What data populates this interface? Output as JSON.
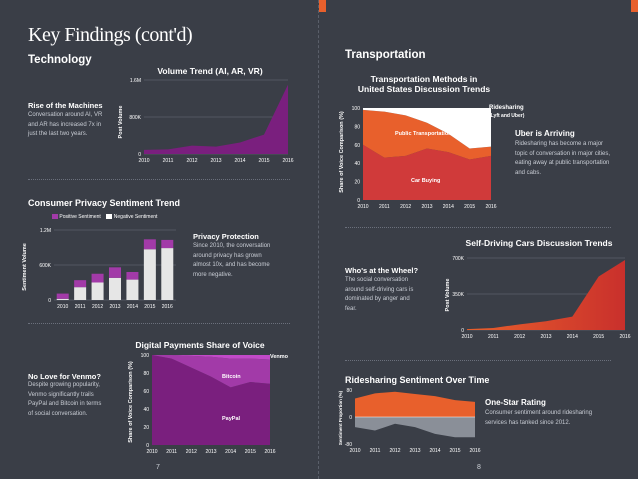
{
  "left_page": {
    "title": "Key Findings (cont'd)",
    "section": "Technology",
    "page_number": "7",
    "volume_trend": {
      "title": "Volume Trend (AI, AR, VR)",
      "heading": "Rise of the Machines",
      "text": [
        "Conversation around AI, VR",
        "and AR has increased 7x in",
        "just the last two years."
      ],
      "ylabel": "Post Volume",
      "yticks": [
        "1.6M",
        "800K",
        "0"
      ],
      "xticks": [
        "2010",
        "2011",
        "2012",
        "2013",
        "2014",
        "2015",
        "2016"
      ]
    },
    "privacy": {
      "title": "Consumer Privacy Sentiment Trend",
      "legend_positive": "Positive Sentiment",
      "legend_negative": "Negative Sentiment",
      "ylabel": "Sentiment Volume",
      "yticks": [
        "1.2M",
        "600K",
        "0"
      ],
      "heading": "Privacy Protection",
      "text": [
        "Since 2010, the conversation",
        "around privacy has grown",
        "almost 10x, and has become",
        "more negative."
      ]
    },
    "payments": {
      "title": "Digital Payments Share of Voice",
      "heading": "No Love for Venmo?",
      "text": [
        "Despite growing popularity,",
        "Venmo significantly trails",
        "PayPal and Bitcoin in terms",
        "of social conversation."
      ],
      "ylabel": "Share of Voice Comparison (%)",
      "yticks": [
        "100",
        "80",
        "60",
        "40",
        "20",
        "0"
      ],
      "label_venmo": "Venmo",
      "label_bitcoin": "Bitcoin",
      "label_paypal": "PayPal"
    }
  },
  "right_page": {
    "section": "Transportation",
    "page_number": "8",
    "methods": {
      "title_line1": "Transportation Methods in",
      "title_line2": "United States Discussion Trends",
      "ylabel": "Share of Voice Comparison (%)",
      "yticks": [
        "100",
        "80",
        "60",
        "40",
        "20",
        "0"
      ],
      "label_ridesharing": "Ridesharing",
      "label_ridesharing_sub": "(Lyft and Uber)",
      "label_public": "Public Transportation",
      "label_car": "Car Buying",
      "heading": "Uber is Arriving",
      "text": [
        "Ridesharing has become a major",
        "topic of conversation in major cities,",
        "eating away at public transportation",
        "and cabs."
      ]
    },
    "selfdriving": {
      "title": "Self-Driving Cars Discussion Trends",
      "heading": "Who's at the Wheel?",
      "text": [
        "The social conversation",
        "around self-driving cars is",
        "dominated by anger and",
        "fear."
      ],
      "ylabel": "Post Volume",
      "yticks": [
        "700K",
        "350K",
        "0"
      ]
    },
    "ridesharing_sentiment": {
      "title": "Ridesharing Sentiment Over Time",
      "ylabel": "Sentiment Proportion (%)",
      "yticks": [
        "80",
        "0",
        "-80"
      ],
      "heading": "One-Star Rating",
      "text": [
        "Consumer sentiment around ridesharing",
        "services has tanked since 2012."
      ]
    }
  },
  "xticks": [
    "2010",
    "2011",
    "2012",
    "2013",
    "2014",
    "2015",
    "2016"
  ],
  "colors": {
    "background": "#3a3e47",
    "orange": "#e8602c",
    "red": "#d03a3a",
    "purple_dark": "#7a1f7e",
    "purple_light": "#a23aa8",
    "gray_area": "#8a8f98"
  },
  "chart_data": [
    {
      "type": "area",
      "title": "Volume Trend (AI, AR, VR)",
      "x": [
        2010,
        2011,
        2012,
        2013,
        2014,
        2015,
        2016
      ],
      "series": [
        {
          "name": "Post Volume",
          "values": [
            90000,
            100000,
            180000,
            160000,
            250000,
            420000,
            1500000
          ]
        }
      ],
      "ylim": [
        0,
        1600000
      ],
      "ylabel": "Post Volume"
    },
    {
      "type": "bar",
      "title": "Consumer Privacy Sentiment Trend",
      "categories": [
        "2010",
        "2011",
        "2012",
        "2013",
        "2014",
        "2015",
        "2016"
      ],
      "series": [
        {
          "name": "Positive Sentiment",
          "values": [
            90000,
            120000,
            150000,
            180000,
            130000,
            170000,
            140000
          ]
        },
        {
          "name": "Negative Sentiment",
          "values": [
            20000,
            220000,
            300000,
            380000,
            350000,
            870000,
            890000
          ]
        }
      ],
      "ylim": [
        0,
        1200000
      ],
      "ylabel": "Sentiment Volume"
    },
    {
      "type": "area",
      "title": "Digital Payments Share of Voice",
      "x": [
        2010,
        2011,
        2012,
        2013,
        2014,
        2015,
        2016
      ],
      "series": [
        {
          "name": "PayPal",
          "values": [
            100,
            96,
            86,
            76,
            64,
            70,
            68
          ]
        },
        {
          "name": "Bitcoin",
          "values": [
            0,
            4,
            13,
            22,
            32,
            26,
            27
          ]
        },
        {
          "name": "Venmo",
          "values": [
            0,
            0,
            1,
            2,
            4,
            4,
            5
          ]
        }
      ],
      "ylim": [
        0,
        100
      ],
      "ylabel": "Share of Voice Comparison (%)"
    },
    {
      "type": "area",
      "title": "Transportation Methods in United States Discussion Trends",
      "x": [
        2010,
        2011,
        2012,
        2013,
        2014,
        2015,
        2016
      ],
      "series": [
        {
          "name": "Car Buying",
          "values": [
            60,
            46,
            48,
            56,
            52,
            44,
            48
          ]
        },
        {
          "name": "Public Transportation",
          "values": [
            38,
            50,
            44,
            28,
            20,
            12,
            10
          ]
        },
        {
          "name": "Ridesharing (Lyft and Uber)",
          "values": [
            2,
            4,
            8,
            16,
            28,
            44,
            42
          ]
        }
      ],
      "ylim": [
        0,
        100
      ],
      "ylabel": "Share of Voice Comparison (%)"
    },
    {
      "type": "area",
      "title": "Self-Driving Cars Discussion Trends",
      "x": [
        2010,
        2011,
        2012,
        2013,
        2014,
        2015,
        2016
      ],
      "series": [
        {
          "name": "Post Volume",
          "values": [
            8000,
            20000,
            55000,
            85000,
            130000,
            520000,
            680000
          ]
        }
      ],
      "ylim": [
        0,
        700000
      ],
      "ylabel": "Post Volume"
    },
    {
      "type": "area",
      "title": "Ridesharing Sentiment Over Time",
      "x": [
        2010,
        2011,
        2012,
        2013,
        2014,
        2015,
        2016
      ],
      "series": [
        {
          "name": "Positive",
          "values": [
            55,
            70,
            75,
            68,
            62,
            50,
            45
          ]
        },
        {
          "name": "Negative",
          "values": [
            -30,
            -40,
            -20,
            -30,
            -50,
            -60,
            -60
          ]
        }
      ],
      "ylim": [
        -80,
        80
      ],
      "ylabel": "Sentiment Proportion (%)"
    }
  ]
}
